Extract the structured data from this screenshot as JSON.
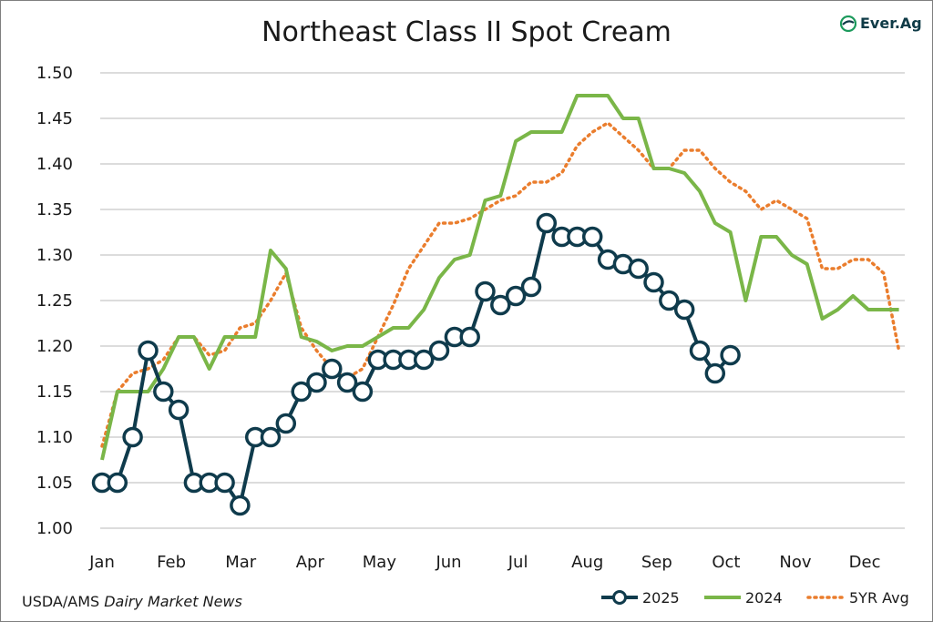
{
  "title": "Northeast Class II Spot Cream",
  "logo_text": "Ever.Ag",
  "source": {
    "prefix": "USDA/AMS ",
    "publication": "Dairy Market News"
  },
  "colors": {
    "s2025": "#0f3b4c",
    "s2024": "#7ab648",
    "s5yr": "#ea7d2d",
    "grid": "#c8c8c8"
  },
  "chart_data": {
    "type": "line",
    "title": "Northeast Class II Spot Cream",
    "xlabel": "",
    "ylabel": "",
    "ylim": [
      1.0,
      1.5
    ],
    "yticks": [
      "1.00",
      "1.05",
      "1.10",
      "1.15",
      "1.20",
      "1.25",
      "1.30",
      "1.35",
      "1.40",
      "1.45",
      "1.50"
    ],
    "xtick_labels": [
      "Jan",
      "Feb",
      "Mar",
      "Apr",
      "May",
      "Jun",
      "Jul",
      "Aug",
      "Sep",
      "Oct",
      "Nov",
      "Dec"
    ],
    "grid": true,
    "legend_position": "bottom-right",
    "series": [
      {
        "name": "2025",
        "style": "line-markers",
        "x": [
          1,
          2,
          3,
          4,
          5,
          6,
          7,
          8,
          9,
          10,
          11,
          12,
          13,
          14,
          15,
          16,
          17,
          18,
          19,
          20,
          21,
          22,
          23,
          24,
          25,
          26,
          27,
          28,
          29,
          30,
          31,
          32,
          33,
          34,
          35,
          36,
          37,
          38,
          39,
          40,
          41,
          42
        ],
        "values": [
          1.05,
          1.05,
          1.1,
          1.195,
          1.15,
          1.13,
          1.05,
          1.05,
          1.05,
          1.025,
          1.1,
          1.1,
          1.115,
          1.15,
          1.16,
          1.175,
          1.16,
          1.15,
          1.185,
          1.185,
          1.185,
          1.185,
          1.195,
          1.21,
          1.21,
          1.26,
          1.245,
          1.255,
          1.265,
          1.335,
          1.32,
          1.32,
          1.32,
          1.295,
          1.29,
          1.285,
          1.27,
          1.25,
          1.24,
          1.195,
          1.17,
          1.19
        ]
      },
      {
        "name": "2024",
        "style": "line",
        "x": [
          1,
          2,
          3,
          4,
          5,
          6,
          7,
          8,
          9,
          10,
          11,
          12,
          13,
          14,
          15,
          16,
          17,
          18,
          19,
          20,
          21,
          22,
          23,
          24,
          25,
          26,
          27,
          28,
          29,
          30,
          31,
          32,
          33,
          34,
          35,
          36,
          37,
          38,
          39,
          40,
          41,
          42,
          43,
          44,
          45,
          46,
          47,
          48,
          49,
          50,
          51,
          52,
          53
        ],
        "values": [
          1.075,
          1.15,
          1.15,
          1.15,
          1.175,
          1.21,
          1.21,
          1.175,
          1.21,
          1.21,
          1.21,
          1.305,
          1.285,
          1.21,
          1.205,
          1.195,
          1.2,
          1.2,
          1.21,
          1.22,
          1.22,
          1.24,
          1.275,
          1.295,
          1.3,
          1.36,
          1.365,
          1.425,
          1.435,
          1.435,
          1.435,
          1.475,
          1.475,
          1.475,
          1.45,
          1.45,
          1.395,
          1.395,
          1.39,
          1.37,
          1.335,
          1.325,
          1.25,
          1.32,
          1.32,
          1.3,
          1.29,
          1.23,
          1.24,
          1.255,
          1.24,
          1.24,
          1.24
        ]
      },
      {
        "name": "5YR Avg",
        "style": "dotted",
        "x": [
          1,
          2,
          3,
          4,
          5,
          6,
          7,
          8,
          9,
          10,
          11,
          12,
          13,
          14,
          15,
          16,
          17,
          18,
          19,
          20,
          21,
          22,
          23,
          24,
          25,
          26,
          27,
          28,
          29,
          30,
          31,
          32,
          33,
          34,
          35,
          36,
          37,
          38,
          39,
          40,
          41,
          42,
          43,
          44,
          45,
          46,
          47,
          48,
          49,
          50,
          51,
          52,
          53
        ],
        "values": [
          1.09,
          1.15,
          1.17,
          1.175,
          1.185,
          1.21,
          1.21,
          1.19,
          1.195,
          1.22,
          1.225,
          1.25,
          1.28,
          1.22,
          1.195,
          1.175,
          1.165,
          1.175,
          1.21,
          1.245,
          1.285,
          1.31,
          1.335,
          1.335,
          1.34,
          1.35,
          1.36,
          1.365,
          1.38,
          1.38,
          1.39,
          1.42,
          1.435,
          1.445,
          1.43,
          1.415,
          1.395,
          1.395,
          1.415,
          1.415,
          1.395,
          1.38,
          1.37,
          1.35,
          1.36,
          1.35,
          1.34,
          1.285,
          1.285,
          1.295,
          1.295,
          1.28,
          1.195
        ]
      }
    ]
  }
}
